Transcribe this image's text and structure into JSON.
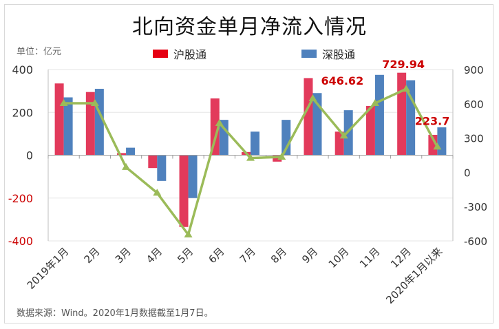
{
  "title": "北向资金单月净流入情况",
  "unit_label": "单位：亿元",
  "source_note": "数据来源：Wind。2020年1月数据截至1月7日。",
  "colors": {
    "sh": "#e23a5b",
    "sz": "#4f81bd",
    "total": "#9bbb59",
    "annotation": "#cc0000"
  },
  "chart_data": {
    "type": "bar",
    "categories": [
      "2019年1月",
      "2月",
      "3月",
      "4月",
      "5月",
      "6月",
      "7月",
      "8月",
      "9月",
      "10月",
      "11月",
      "12月",
      "2020年1月以来"
    ],
    "series": [
      {
        "name": "沪股通",
        "axis": "left",
        "values": [
          335,
          295,
          10,
          -60,
          -335,
          265,
          15,
          -30,
          360,
          110,
          230,
          385,
          95
        ]
      },
      {
        "name": "深股通",
        "axis": "left",
        "values": [
          270,
          310,
          35,
          -120,
          -200,
          165,
          110,
          165,
          290,
          210,
          375,
          350,
          130
        ]
      },
      {
        "name": "",
        "axis": "right",
        "type": "line",
        "values": [
          605,
          605,
          45,
          -180,
          -545,
          430,
          125,
          135,
          646.62,
          320,
          605,
          729.94,
          223.7
        ]
      }
    ],
    "left_axis": {
      "ylim": [
        -400,
        400
      ],
      "ticks": [
        "400",
        "200",
        "0",
        "-200",
        "-400"
      ],
      "tick_values": [
        400,
        200,
        0,
        -200,
        -400
      ]
    },
    "right_axis": {
      "ylim": [
        -600,
        900
      ],
      "ticks": [
        "900",
        "600",
        "300",
        "0",
        "-300",
        "-600"
      ],
      "tick_values": [
        900,
        600,
        300,
        0,
        -300,
        -600
      ]
    },
    "annotations": [
      {
        "index": 8,
        "text": "646.62"
      },
      {
        "index": 11,
        "text": "729.94"
      },
      {
        "index": 12,
        "text": "223.7"
      }
    ],
    "grid": true,
    "legend_position": "top"
  }
}
